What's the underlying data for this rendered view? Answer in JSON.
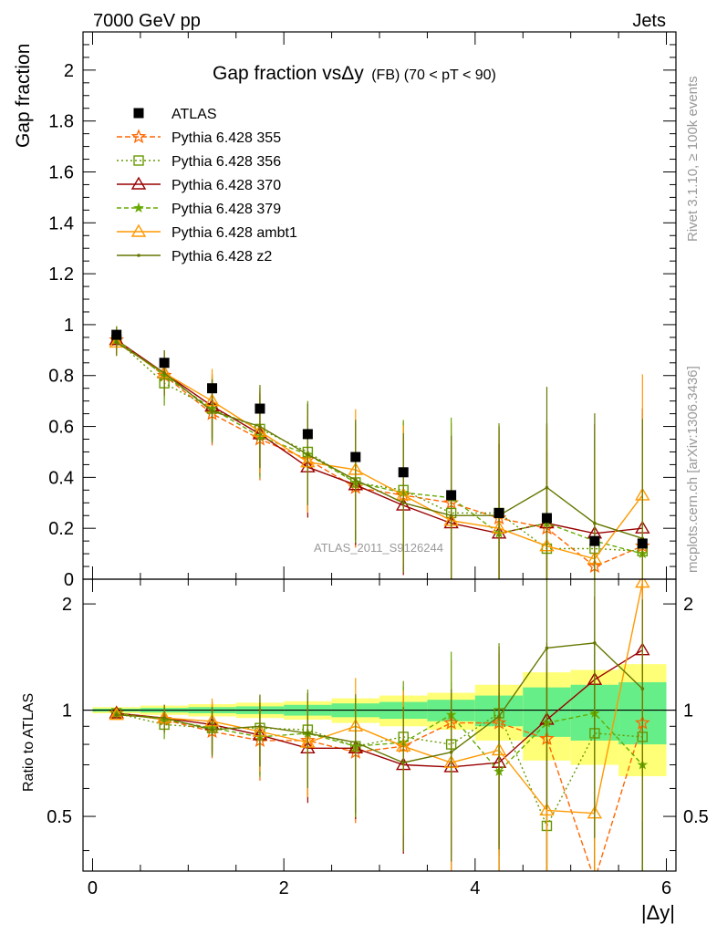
{
  "header": {
    "left": "7000 GeV pp",
    "right": "Jets"
  },
  "side": {
    "rivet": "Rivet 3.1.10, ≥ 100k events",
    "mcplots": "mcplots.cern.ch [arXiv:1306.3436]"
  },
  "chart_data": {
    "type": "line",
    "title_main": "Gap fraction vsΔy",
    "title_sub": "(FB) (70 < pT <  90)",
    "ylabel": "Gap fraction",
    "ratio_ylabel": "Ratio to ATLAS",
    "xlabel": "|Δy|",
    "watermark": "ATLAS_2011_S9126244",
    "xlim": [
      -0.1,
      6.1
    ],
    "ylim": [
      0,
      2.15
    ],
    "ratio_ylim": [
      0.35,
      2.35
    ],
    "x_ticks": [
      "0",
      "2",
      "4",
      "6"
    ],
    "y_ticks": [
      "0",
      "0.2",
      "0.4",
      "0.6",
      "0.8",
      "1",
      "1.2",
      "1.4",
      "1.6",
      "1.8",
      "2"
    ],
    "ratio_ticks": [
      "0.5",
      "1",
      "2"
    ],
    "x": [
      0.25,
      0.75,
      1.25,
      1.75,
      2.25,
      2.75,
      3.25,
      3.75,
      4.25,
      4.75,
      5.25,
      5.75
    ],
    "data": {
      "name": "ATLAS",
      "values": [
        0.96,
        0.85,
        0.75,
        0.67,
        0.57,
        0.48,
        0.42,
        0.33,
        0.26,
        0.24,
        0.15,
        0.14
      ],
      "color": "#000000"
    },
    "band_inner": [
      0.01,
      0.015,
      0.02,
      0.025,
      0.035,
      0.045,
      0.055,
      0.07,
      0.1,
      0.16,
      0.18,
      0.2
    ],
    "band_outer": [
      0.02,
      0.03,
      0.04,
      0.05,
      0.06,
      0.08,
      0.1,
      0.12,
      0.18,
      0.28,
      0.3,
      0.35
    ],
    "series": [
      {
        "name": "Pythia 6.428 355",
        "color": "#ff6600",
        "dash": "6,3",
        "marker": "star",
        "values": [
          0.94,
          0.8,
          0.65,
          0.55,
          0.47,
          0.36,
          0.33,
          0.3,
          0.24,
          0.2,
          0.05,
          0.13
        ],
        "ratio": [
          0.98,
          0.94,
          0.87,
          0.82,
          0.82,
          0.76,
          0.79,
          0.92,
          0.92,
          0.83,
          0.33,
          0.92
        ]
      },
      {
        "name": "Pythia 6.428 356",
        "color": "#669900",
        "dash": "2,3",
        "marker": "square",
        "values": [
          0.94,
          0.77,
          0.67,
          0.59,
          0.5,
          0.38,
          0.35,
          0.26,
          0.26,
          0.12,
          0.12,
          0.11
        ],
        "ratio": [
          0.98,
          0.91,
          0.89,
          0.89,
          0.88,
          0.79,
          0.84,
          0.8,
          0.98,
          0.47,
          0.86,
          0.84
        ]
      },
      {
        "name": "Pythia 6.428 370",
        "color": "#990000",
        "dash": "",
        "marker": "triangle",
        "values": [
          0.94,
          0.81,
          0.68,
          0.57,
          0.44,
          0.37,
          0.29,
          0.22,
          0.18,
          0.22,
          0.18,
          0.2
        ],
        "ratio": [
          0.98,
          0.95,
          0.91,
          0.85,
          0.78,
          0.78,
          0.7,
          0.69,
          0.71,
          0.94,
          1.22,
          1.48
        ]
      },
      {
        "name": "Pythia 6.428 379",
        "color": "#66aa00",
        "dash": "5,3",
        "marker": "star-small",
        "values": [
          0.94,
          0.8,
          0.67,
          0.56,
          0.49,
          0.38,
          0.34,
          0.32,
          0.18,
          0.22,
          0.15,
          0.1
        ],
        "ratio": [
          0.98,
          0.94,
          0.89,
          0.84,
          0.86,
          0.79,
          0.81,
          0.97,
          0.67,
          0.92,
          0.98,
          0.7
        ]
      },
      {
        "name": "Pythia 6.428 ambt1",
        "color": "#ff9900",
        "dash": "",
        "marker": "triangle",
        "values": [
          0.93,
          0.81,
          0.7,
          0.58,
          0.46,
          0.43,
          0.33,
          0.23,
          0.2,
          0.13,
          0.08,
          0.33
        ],
        "ratio": [
          0.97,
          0.95,
          0.93,
          0.87,
          0.81,
          0.9,
          0.79,
          0.71,
          0.77,
          0.52,
          0.51,
          2.3
        ]
      },
      {
        "name": "Pythia 6.428 z2",
        "color": "#667700",
        "dash": "",
        "marker": "dot",
        "values": [
          0.93,
          0.81,
          0.66,
          0.6,
          0.49,
          0.39,
          0.3,
          0.25,
          0.25,
          0.36,
          0.22,
          0.16
        ],
        "ratio": [
          0.97,
          0.95,
          0.88,
          0.9,
          0.86,
          0.81,
          0.71,
          0.76,
          0.96,
          1.5,
          1.55,
          1.15
        ]
      }
    ]
  }
}
